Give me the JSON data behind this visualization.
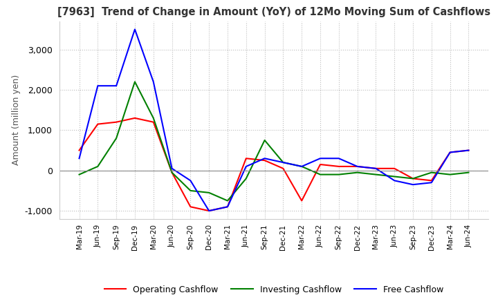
{
  "title": "[7963]  Trend of Change in Amount (YoY) of 12Mo Moving Sum of Cashflows",
  "ylabel": "Amount (million yen)",
  "ylim": [
    -1200,
    3700
  ],
  "yticks": [
    -1000,
    0,
    1000,
    2000,
    3000
  ],
  "x_labels": [
    "Mar-19",
    "Jun-19",
    "Sep-19",
    "Dec-19",
    "Mar-20",
    "Jun-20",
    "Sep-20",
    "Dec-20",
    "Mar-21",
    "Jun-21",
    "Sep-21",
    "Dec-21",
    "Mar-22",
    "Jun-22",
    "Sep-22",
    "Dec-22",
    "Mar-23",
    "Jun-23",
    "Sep-23",
    "Dec-23",
    "Mar-24",
    "Jun-24"
  ],
  "operating": [
    500,
    1150,
    1200,
    1300,
    1200,
    -50,
    -900,
    -1000,
    -900,
    300,
    250,
    50,
    -750,
    150,
    100,
    100,
    50,
    50,
    -200,
    -250,
    450,
    500
  ],
  "investing": [
    -100,
    100,
    800,
    2200,
    1300,
    -50,
    -500,
    -550,
    -750,
    -200,
    750,
    200,
    100,
    -100,
    -100,
    -50,
    -100,
    -150,
    -200,
    -50,
    -100,
    -50
  ],
  "free": [
    300,
    2100,
    2100,
    3500,
    2200,
    50,
    -250,
    -1000,
    -900,
    100,
    300,
    200,
    100,
    300,
    300,
    100,
    50,
    -250,
    -350,
    -300,
    450,
    500
  ],
  "operating_color": "#ff0000",
  "investing_color": "#008000",
  "free_color": "#0000ff",
  "bg_color": "#ffffff",
  "grid_color": "#bbbbbb",
  "title_color": "#333333",
  "legend_labels": [
    "Operating Cashflow",
    "Investing Cashflow",
    "Free Cashflow"
  ]
}
